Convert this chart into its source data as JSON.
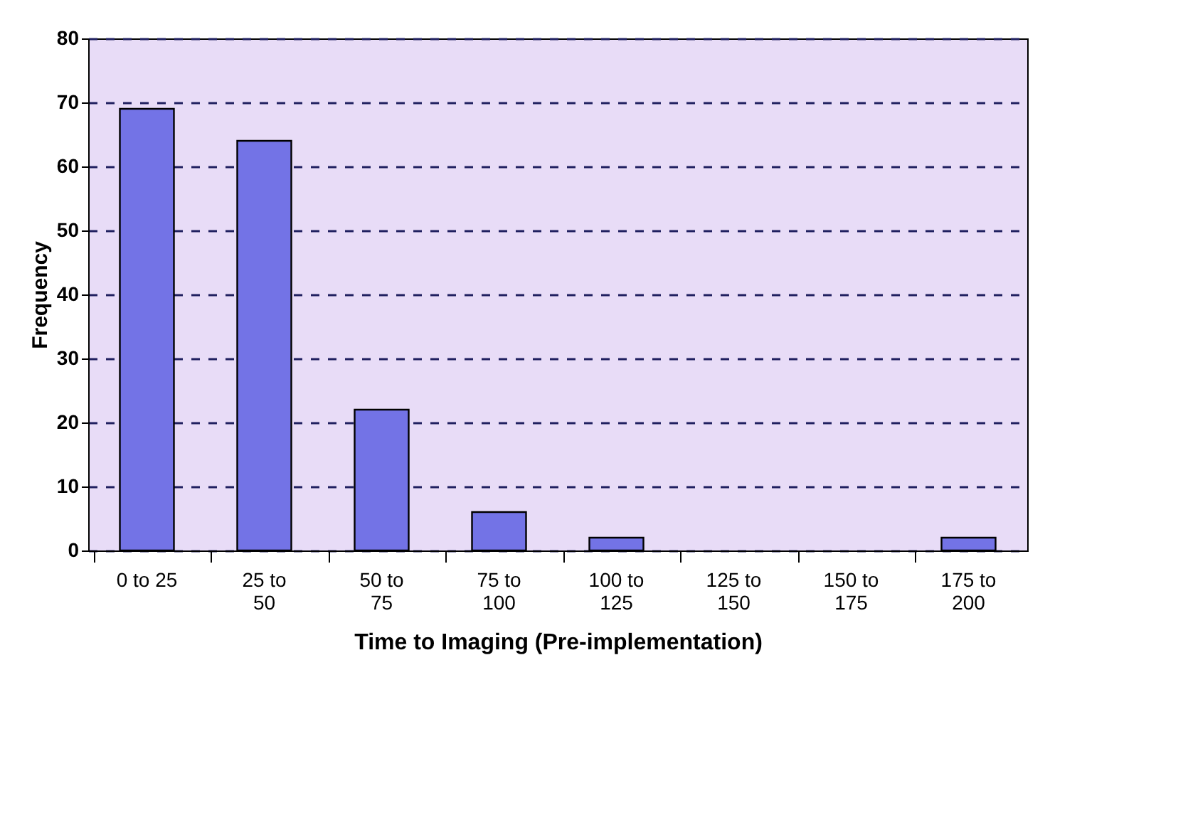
{
  "chart_data": {
    "type": "bar",
    "xlabel": "Time to Imaging (Pre-implementation)",
    "ylabel": "Frequency",
    "categories": [
      "0 to 25",
      "25 to 50",
      "50 to 75",
      "75 to 100",
      "100 to 125",
      "125 to 150",
      "150 to 175",
      "175 to 200"
    ],
    "values": [
      69,
      64,
      22,
      6,
      2,
      0,
      0,
      2
    ],
    "color": "#7373e6",
    "ylim": [
      0,
      80
    ],
    "yticks": [
      0,
      10,
      20,
      30,
      40,
      50,
      60,
      70,
      80
    ],
    "grid": "y"
  }
}
